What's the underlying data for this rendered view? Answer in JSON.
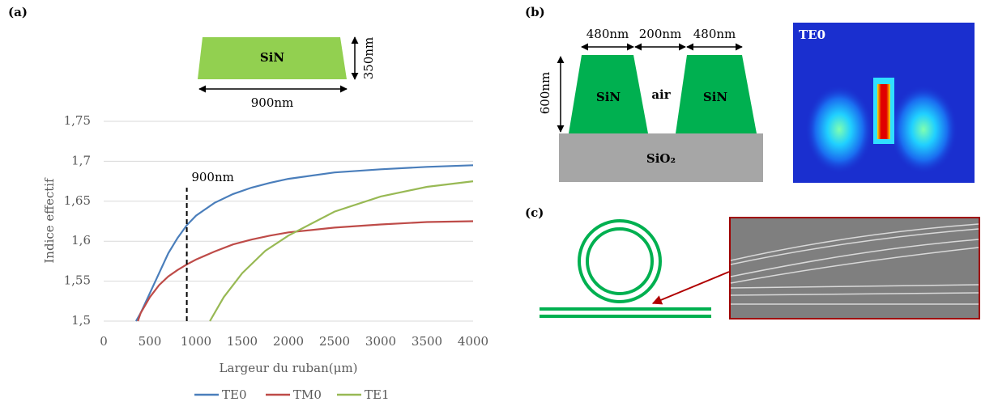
{
  "chart_data": {
    "type": "line",
    "x_label": "Largeur du ruban(μm)",
    "y_label": "Indice effectif",
    "xlim": [
      0,
      4000
    ],
    "xticks": [
      0,
      500,
      1000,
      1500,
      2000,
      2500,
      3000,
      3500,
      4000
    ],
    "ylim": [
      1.5,
      1.75
    ],
    "yticks": [
      {
        "value": 1.5,
        "label": "1,5"
      },
      {
        "value": 1.55,
        "label": "1,55"
      },
      {
        "value": 1.6,
        "label": "1,6"
      },
      {
        "value": 1.65,
        "label": "1,65"
      },
      {
        "value": 1.7,
        "label": "1,7"
      },
      {
        "value": 1.75,
        "label": "1,75"
      }
    ],
    "grid": true,
    "series": [
      {
        "name": "TE0",
        "color": "#4a7ebb",
        "x": [
          350,
          400,
          500,
          600,
          700,
          800,
          900,
          1000,
          1200,
          1400,
          1600,
          1800,
          2000,
          2500,
          3000,
          3500,
          4000
        ],
        "values": [
          1.5,
          1.51,
          1.535,
          1.56,
          1.585,
          1.604,
          1.62,
          1.632,
          1.648,
          1.659,
          1.667,
          1.673,
          1.678,
          1.686,
          1.69,
          1.693,
          1.695
        ]
      },
      {
        "name": "TM0",
        "color": "#be4b48",
        "x": [
          370,
          400,
          500,
          600,
          700,
          800,
          900,
          1000,
          1200,
          1400,
          1600,
          1800,
          2000,
          2500,
          3000,
          3500,
          4000
        ],
        "values": [
          1.5,
          1.51,
          1.53,
          1.545,
          1.556,
          1.564,
          1.571,
          1.577,
          1.587,
          1.596,
          1.602,
          1.607,
          1.611,
          1.617,
          1.621,
          1.624,
          1.625
        ]
      },
      {
        "name": "TE1",
        "color": "#98b954",
        "x": [
          1150,
          1300,
          1500,
          1750,
          2000,
          2500,
          3000,
          3500,
          4000
        ],
        "values": [
          1.5,
          1.53,
          1.56,
          1.588,
          1.607,
          1.637,
          1.656,
          1.668,
          1.675
        ]
      }
    ],
    "marker": {
      "x": 900,
      "label": "900nm"
    }
  },
  "panel_a": {
    "label": "(a)",
    "material": "SiN",
    "height": "350nm",
    "width": "900nm"
  },
  "panel_b": {
    "label": "(b)",
    "width_left": "480nm",
    "gap": "200nm",
    "width_right": "480nm",
    "height": "600nm",
    "core_left": "SiN",
    "cladding": "air",
    "core_right": "SiN",
    "substrate": "SiO₂",
    "mode": "TE0"
  },
  "panel_c": {
    "label": "(c)"
  }
}
